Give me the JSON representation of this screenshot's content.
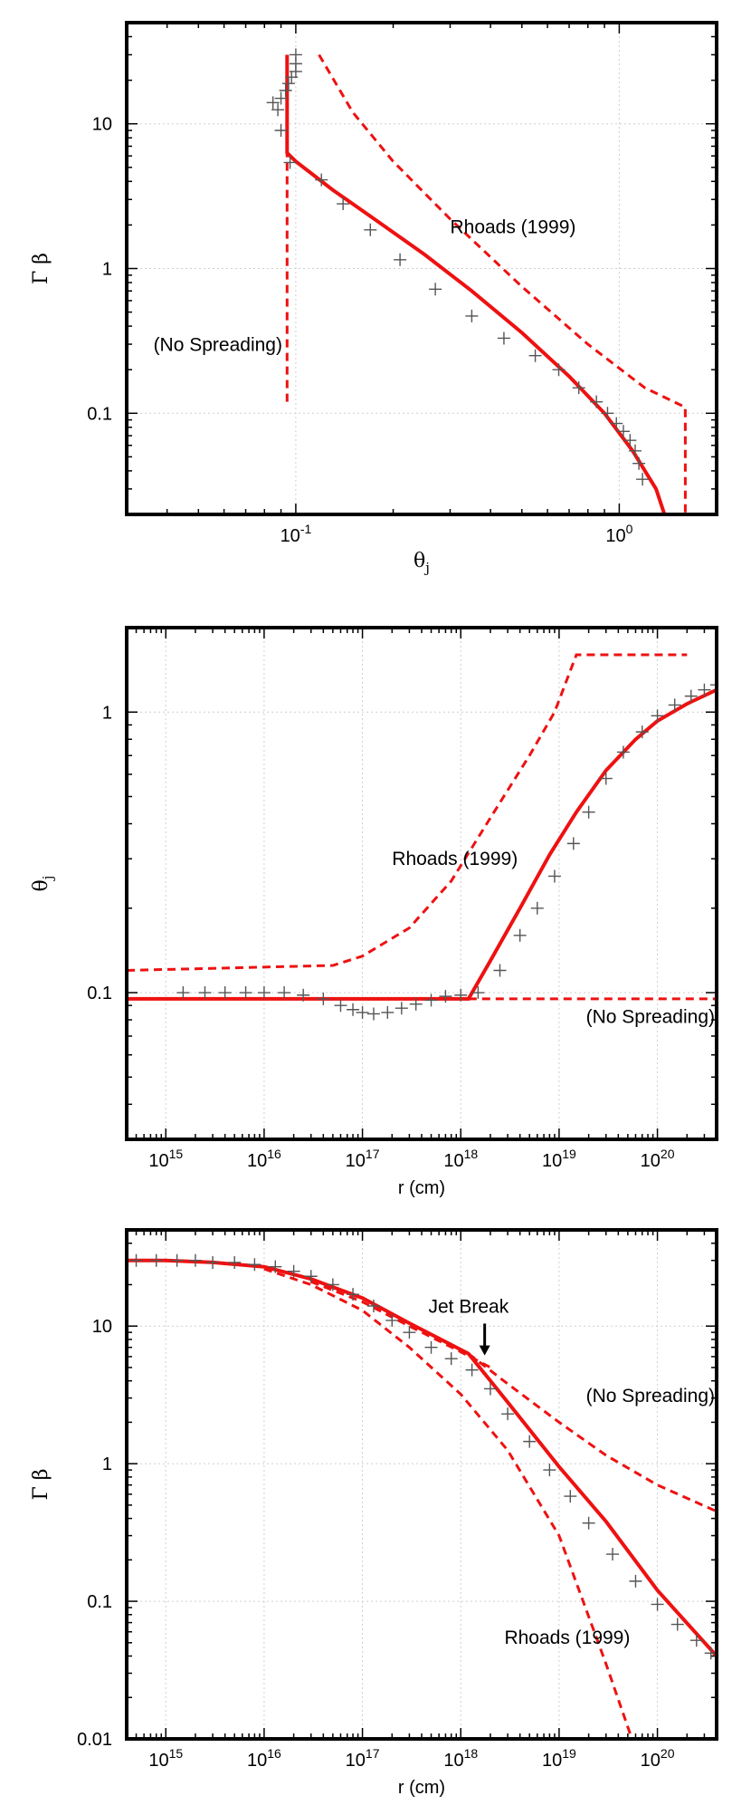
{
  "chart_data": [
    {
      "type": "line",
      "xlabel": "θj",
      "ylabel": "Γ β",
      "xscale": "log",
      "yscale": "log",
      "xlim": [
        0.03,
        2.0
      ],
      "ylim": [
        0.02,
        50
      ],
      "grid": true,
      "xticks": [
        {
          "v": 0.1,
          "b": "10",
          "e": "-1"
        },
        {
          "v": 1.0,
          "b": "10",
          "e": "0"
        }
      ],
      "yticks": [
        {
          "v": 0.1,
          "t": "0.1"
        },
        {
          "v": 1,
          "t": "1"
        },
        {
          "v": 10,
          "t": "10"
        }
      ],
      "series": [
        {
          "style": "solid",
          "color": "#ee1111",
          "x": [
            0.094,
            0.094,
            0.1,
            0.13,
            0.18,
            0.25,
            0.35,
            0.5,
            0.7,
            0.9,
            1.1,
            1.3,
            1.38
          ],
          "y": [
            30,
            6.3,
            5.5,
            3.5,
            2.1,
            1.25,
            0.7,
            0.36,
            0.18,
            0.1,
            0.055,
            0.03,
            0.02
          ]
        },
        {
          "style": "dash",
          "color": "#ee1111",
          "x": [
            0.094,
            0.094
          ],
          "y": [
            0.12,
            30
          ]
        },
        {
          "style": "dash",
          "color": "#ee1111",
          "x": [
            0.118,
            0.15,
            0.2,
            0.3,
            0.5,
            0.8,
            1.2,
            1.6,
            1.6
          ],
          "y": [
            30,
            12,
            5.5,
            2.2,
            0.75,
            0.3,
            0.15,
            0.11,
            0.02
          ]
        },
        {
          "style": "marker",
          "color": "#555555",
          "x": [
            0.1,
            0.1,
            0.1,
            0.097,
            0.095,
            0.093,
            0.09,
            0.088,
            0.085,
            0.09,
            0.096,
            0.12,
            0.14,
            0.17,
            0.21,
            0.27,
            0.35,
            0.44,
            0.55,
            0.65,
            0.75,
            0.85,
            0.92,
            0.98,
            1.03,
            1.08,
            1.12,
            1.15,
            1.18
          ],
          "y": [
            30,
            26,
            23,
            21,
            19,
            17,
            15,
            12.5,
            14,
            9,
            5.4,
            4.1,
            2.8,
            1.85,
            1.15,
            0.72,
            0.47,
            0.33,
            0.25,
            0.2,
            0.15,
            0.12,
            0.1,
            0.085,
            0.075,
            0.065,
            0.055,
            0.045,
            0.035
          ]
        }
      ],
      "annotations": [
        {
          "text": "Rhoads (1999)",
          "x": 0.3,
          "y": 1.75,
          "anchor": "start"
        },
        {
          "text": "(No Spreading)",
          "x": 0.092,
          "y": 0.27,
          "anchor": "end"
        }
      ]
    },
    {
      "type": "line",
      "xlabel": "r (cm)",
      "ylabel": "θj",
      "xscale": "log",
      "yscale": "log",
      "xlim": [
        400000000000000.0,
        4e+20
      ],
      "ylim": [
        0.03,
        2.0
      ],
      "grid": true,
      "xticks": [
        {
          "v": 1000000000000000.0,
          "b": "10",
          "e": "15"
        },
        {
          "v": 1e+16,
          "b": "10",
          "e": "16"
        },
        {
          "v": 1e+17,
          "b": "10",
          "e": "17"
        },
        {
          "v": 1e+18,
          "b": "10",
          "e": "18"
        },
        {
          "v": 1e+19,
          "b": "10",
          "e": "19"
        },
        {
          "v": 1e+20,
          "b": "10",
          "e": "20"
        }
      ],
      "yticks": [
        {
          "v": 0.1,
          "t": "0.1"
        },
        {
          "v": 1,
          "t": "1"
        }
      ],
      "series": [
        {
          "style": "solid",
          "color": "#ee1111",
          "x": [
            400000000000000.0,
            1.2e+18,
            2e+18,
            4e+18,
            8e+18,
            1.5e+19,
            3e+19,
            6e+19,
            1e+20,
            2e+20,
            4e+20
          ],
          "y": [
            0.095,
            0.095,
            0.13,
            0.2,
            0.31,
            0.44,
            0.62,
            0.8,
            0.93,
            1.07,
            1.2
          ]
        },
        {
          "style": "dash",
          "color": "#ee1111",
          "x": [
            1.2e+18,
            4e+20
          ],
          "y": [
            0.095,
            0.095
          ]
        },
        {
          "style": "dash",
          "color": "#ee1111",
          "x": [
            400000000000000.0,
            5e+16,
            1e+17,
            3e+17,
            8e+17,
            2e+18,
            5e+18,
            9e+18,
            1.5e+19,
            1.5e+19,
            2e+20
          ],
          "y": [
            0.12,
            0.125,
            0.135,
            0.17,
            0.25,
            0.42,
            0.7,
            1.0,
            1.6,
            1.6,
            1.6
          ]
        },
        {
          "style": "marker",
          "color": "#555555",
          "x": [
            1500000000000000.0,
            2500000000000000.0,
            4000000000000000.0,
            6500000000000000.0,
            1e+16,
            1.6e+16,
            2.5e+16,
            4e+16,
            6e+16,
            8e+16,
            1e+17,
            1.3e+17,
            1.8e+17,
            2.5e+17,
            3.5e+17,
            5e+17,
            7e+17,
            1e+18,
            1.5e+18,
            2.5e+18,
            4e+18,
            6e+18,
            9e+18,
            1.4e+19,
            2e+19,
            3e+19,
            4.5e+19,
            7e+19,
            1e+20,
            1.5e+20,
            2.2e+20,
            3e+20,
            4e+20
          ],
          "y": [
            0.1,
            0.1,
            0.1,
            0.1,
            0.1,
            0.1,
            0.098,
            0.095,
            0.09,
            0.087,
            0.085,
            0.084,
            0.085,
            0.088,
            0.091,
            0.094,
            0.097,
            0.098,
            0.1,
            0.12,
            0.16,
            0.2,
            0.26,
            0.34,
            0.44,
            0.58,
            0.72,
            0.85,
            0.97,
            1.06,
            1.14,
            1.2,
            1.25
          ]
        }
      ],
      "annotations": [
        {
          "text": "Rhoads (1999)",
          "x": 2e+17,
          "y": 0.285,
          "anchor": "start"
        },
        {
          "text": "(No Spreading)",
          "x": 4e+20,
          "y": 0.078,
          "anchor": "end"
        }
      ]
    },
    {
      "type": "line",
      "xlabel": "r (cm)",
      "ylabel": "Γ β",
      "xscale": "log",
      "yscale": "log",
      "xlim": [
        400000000000000.0,
        4e+20
      ],
      "ylim": [
        0.01,
        50
      ],
      "grid": true,
      "xticks": [
        {
          "v": 1000000000000000.0,
          "b": "10",
          "e": "15"
        },
        {
          "v": 1e+16,
          "b": "10",
          "e": "16"
        },
        {
          "v": 1e+17,
          "b": "10",
          "e": "17"
        },
        {
          "v": 1e+18,
          "b": "10",
          "e": "18"
        },
        {
          "v": 1e+19,
          "b": "10",
          "e": "19"
        },
        {
          "v": 1e+20,
          "b": "10",
          "e": "20"
        }
      ],
      "yticks": [
        {
          "v": 0.01,
          "t": "0.01"
        },
        {
          "v": 0.1,
          "t": "0.1"
        },
        {
          "v": 1,
          "t": "1"
        },
        {
          "v": 10,
          "t": "10"
        }
      ],
      "series": [
        {
          "style": "solid",
          "color": "#ee1111",
          "x": [
            400000000000000.0,
            1000000000000000.0,
            3000000000000000.0,
            1e+16,
            3e+16,
            1e+17,
            3e+17,
            1.2e+18,
            3e+18,
            1e+19,
            3e+19,
            1e+20,
            4e+20
          ],
          "y": [
            30,
            30,
            29,
            27,
            22,
            16,
            10.5,
            6.3,
            2.8,
            0.95,
            0.38,
            0.12,
            0.04
          ]
        },
        {
          "style": "dash",
          "color": "#ee1111",
          "x": [
            1.2e+18,
            3e+18,
            1e+19,
            3e+19,
            1e+20,
            4e+20
          ],
          "y": [
            6.3,
            3.8,
            2.0,
            1.15,
            0.7,
            0.45
          ]
        },
        {
          "style": "dash",
          "color": "#ee1111",
          "x": [
            1e+16,
            3e+16,
            1e+17,
            3e+17,
            1e+18,
            3e+18,
            1e+19,
            3e+19,
            5.5e+19
          ],
          "y": [
            26,
            20,
            13,
            7,
            3.2,
            1.25,
            0.3,
            0.035,
            0.01
          ]
        },
        {
          "style": "dash",
          "color": "#ee1111",
          "x": [
            3e+16,
            1e+17,
            3e+17,
            1e+18,
            2e+18
          ],
          "y": [
            21,
            15,
            10,
            6.5,
            5
          ]
        },
        {
          "style": "marker",
          "color": "#555555",
          "x": [
            500000000000000.0,
            800000000000000.0,
            1300000000000000.0,
            2000000000000000.0,
            3000000000000000.0,
            5000000000000000.0,
            8000000000000000.0,
            1.3e+16,
            2e+16,
            3e+16,
            5e+16,
            8e+16,
            1.3e+17,
            2e+17,
            3e+17,
            5e+17,
            8e+17,
            1.3e+18,
            2e+18,
            3e+18,
            5e+18,
            8e+18,
            1.3e+19,
            2e+19,
            3.5e+19,
            6e+19,
            1e+20,
            1.6e+20,
            2.5e+20,
            3.5e+20
          ],
          "y": [
            30,
            30,
            30,
            30,
            29,
            29,
            28,
            27,
            25,
            23,
            20,
            17,
            14,
            11,
            9,
            7,
            5.8,
            4.8,
            3.5,
            2.3,
            1.45,
            0.9,
            0.58,
            0.37,
            0.22,
            0.14,
            0.095,
            0.068,
            0.052,
            0.042
          ]
        }
      ],
      "annotations": [
        {
          "text": "Jet Break",
          "x": 1.2e+18,
          "y": 12.5,
          "anchor": "middle"
        },
        {
          "text": "(No Spreading)",
          "x": 4e+20,
          "y": 2.8,
          "anchor": "end"
        },
        {
          "text": "Rhoads (1999)",
          "x": 5.5e+19,
          "y": 0.049,
          "anchor": "end"
        }
      ]
    }
  ],
  "style": {
    "curve_color": "#ee1111",
    "marker_color": "#555555"
  }
}
